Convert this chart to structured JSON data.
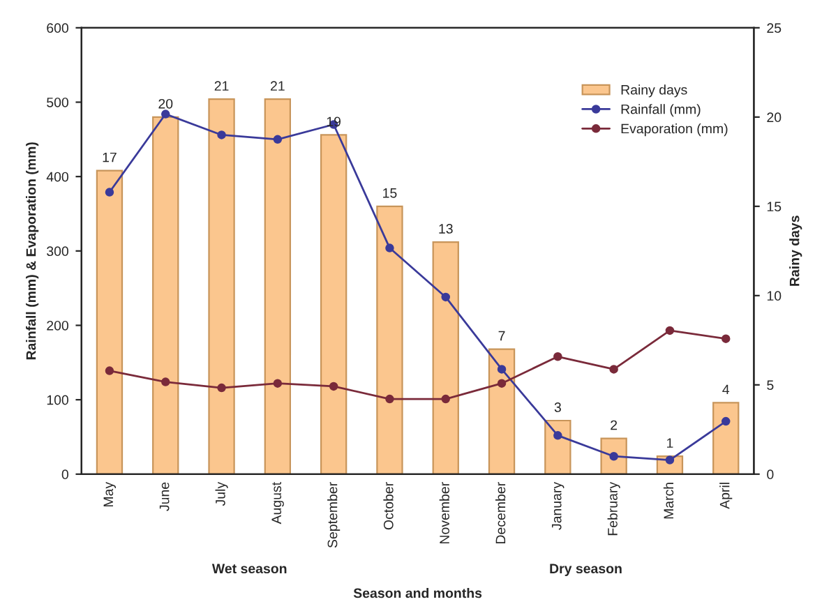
{
  "chart_data": {
    "type": "bar",
    "xlabel": "Season and months",
    "ylabel": "Rainfall (mm) & Evaporation (mm)",
    "y2label": "Rainy days",
    "categories": [
      "May",
      "June",
      "July",
      "August",
      "September",
      "October",
      "November",
      "December",
      "January",
      "February",
      "March",
      "April"
    ],
    "series": [
      {
        "name": "Rainy days",
        "axis": "y2",
        "color": "#fbc68e",
        "values": [
          17,
          20,
          21,
          21,
          19,
          15,
          13,
          7,
          3,
          2,
          1,
          4
        ],
        "value_labels": [
          "17",
          "20",
          "21",
          "21",
          "19",
          "15",
          "13",
          "7",
          "3",
          "2",
          "1",
          "4"
        ]
      },
      {
        "name": "Rainfall (mm)",
        "type": "line",
        "color": "#3a3a9a",
        "values": [
          379,
          484,
          456,
          450,
          470,
          304,
          238,
          141,
          52,
          24,
          19,
          71
        ]
      },
      {
        "name": "Evaporation (mm)",
        "type": "line",
        "color": "#7a2a3a",
        "values": [
          139,
          124,
          116,
          122,
          118,
          101,
          101,
          122,
          158,
          141,
          193,
          182
        ]
      }
    ],
    "annotations": [
      "Wet season",
      "Dry season"
    ],
    "ylim": [
      0,
      600
    ],
    "yticks": [
      0,
      100,
      200,
      300,
      400,
      500,
      600
    ],
    "y2lim": [
      0,
      25
    ],
    "y2ticks": [
      0,
      5,
      10,
      15,
      20,
      25
    ],
    "marker": "circle",
    "legend": "top right",
    "grid": false
  }
}
